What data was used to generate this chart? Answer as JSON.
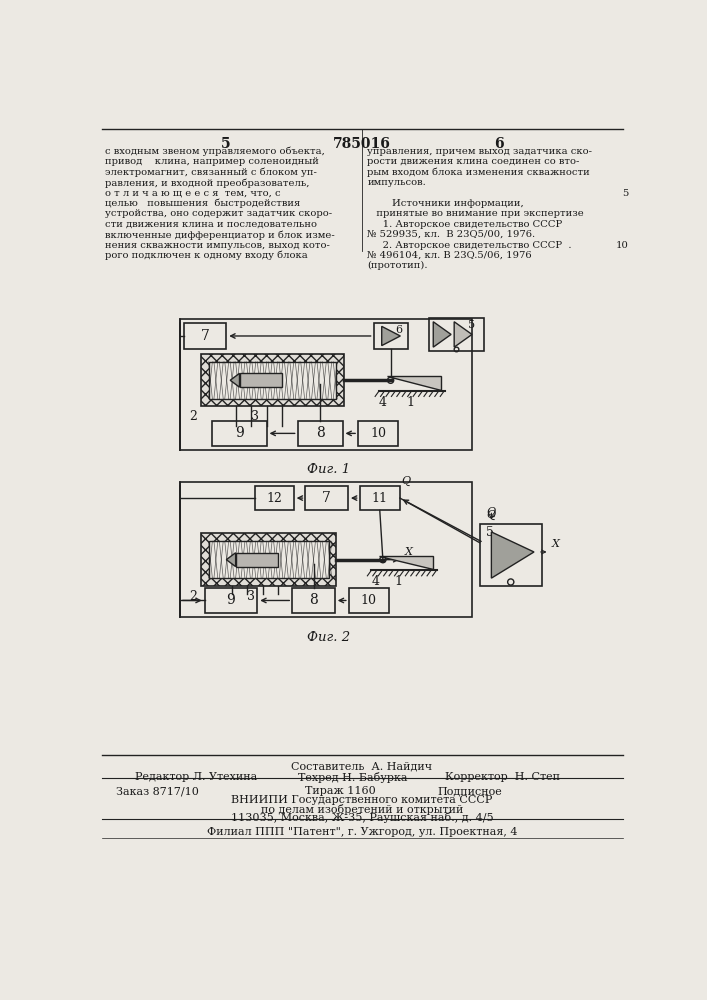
{
  "background_color": "#ece9e3",
  "page_number_left": "5",
  "page_number_center": "785016",
  "page_number_right": "6",
  "top_left_text": [
    "с входным звеном управляемого объекта,",
    "привод    клина, например соленоидный",
    "электромагнит, связанный с блоком уп-",
    "равления, и входной преобразователь,",
    "о т л и ч а ю щ е е с я  тем, что, с",
    "целью   повышения  быстродействия",
    "устройства, оно содержит задатчик скоро-",
    "сти движения клина и последовательно",
    "включенные дифференциатор и блок изме-",
    "нения скважности импульсов, выход кото-",
    "рого подключен к одному входу блока"
  ],
  "top_right_text": [
    "управления, причем выход задатчика ско-",
    "рости движения клина соединен со вто-",
    "рым входом блока изменения скважности",
    "импульсов.",
    "",
    "        Источники информации,",
    "   принятые во внимание при экспертизе",
    "     1. Авторское свидетельство СССР",
    "№ 529935, кл.  В 23Q5/00, 1976.",
    "     2. Авторское свидетельство СССР  .",
    "№ 496104, кл. В 23Q.5/06, 1976",
    "(прототип)."
  ],
  "fig1_caption": "Фиг. 1",
  "fig2_caption": "Фиг. 2",
  "footer_compiler": "Составитель  А. Найдич",
  "footer_editor": "Редактор Л. Утехина",
  "footer_techred": "Техред Н. Бабурка",
  "footer_corrector": "Корректор  Н. Степ",
  "footer_order": "Заказ 8717/10",
  "footer_print": "Тираж 1160",
  "footer_subscription": "Подписное",
  "footer_org1": "ВНИИПИ Государственного комитета СССР",
  "footer_org2": "по делам изобретений и открытий",
  "footer_address": "113035, Москва, Ж-35, Раушская наб., д. 4/5",
  "footer_branch": "Филиал ППП \"Патент\", г. Ужгород, ул. Проектная, 4",
  "text_color": "#1a1a1a",
  "line_color": "#222222"
}
